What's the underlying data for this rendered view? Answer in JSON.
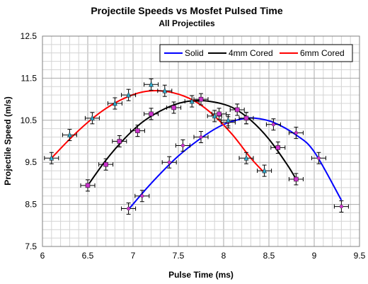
{
  "chart_data": {
    "type": "line",
    "title": "Projectile Speeds vs Mosfet Pulsed Time",
    "subtitle": "All Projectiles",
    "xlabel": "Pulse Time (ms)",
    "ylabel": "Projectile Speed (m/s)",
    "xlim": [
      6,
      9.5
    ],
    "ylim": [
      7.5,
      12.5
    ],
    "xticks": [
      "6",
      "6.5",
      "7",
      "7.5",
      "8",
      "8.5",
      "9",
      "9.5"
    ],
    "yticks": [
      "7.5",
      "8.5",
      "9.5",
      "10.5",
      "11.5",
      "12.5"
    ],
    "grid": true,
    "legend_position": "top-right",
    "series": [
      {
        "name": "Solid",
        "color": "#0000ff",
        "marker": "diamond",
        "marker_color": "#cc33cc",
        "points": [
          {
            "x": 6.95,
            "y": 8.4
          },
          {
            "x": 7.1,
            "y": 8.7
          },
          {
            "x": 7.4,
            "y": 9.5
          },
          {
            "x": 7.55,
            "y": 9.9
          },
          {
            "x": 7.75,
            "y": 10.1
          },
          {
            "x": 8.05,
            "y": 10.45
          },
          {
            "x": 8.25,
            "y": 10.55
          },
          {
            "x": 8.55,
            "y": 10.4
          },
          {
            "x": 8.8,
            "y": 10.2
          },
          {
            "x": 9.05,
            "y": 9.6
          },
          {
            "x": 9.3,
            "y": 8.45
          }
        ],
        "fit": [
          [
            6.95,
            8.38
          ],
          [
            7.2,
            9.0
          ],
          [
            7.5,
            9.65
          ],
          [
            7.8,
            10.15
          ],
          [
            8.0,
            10.4
          ],
          [
            8.2,
            10.53
          ],
          [
            8.35,
            10.55
          ],
          [
            8.55,
            10.45
          ],
          [
            8.8,
            10.15
          ],
          [
            9.0,
            9.75
          ],
          [
            9.3,
            8.6
          ]
        ]
      },
      {
        "name": "4mm Cored",
        "color": "#000000",
        "marker": "square",
        "marker_color": "#cc33cc",
        "points": [
          {
            "x": 6.5,
            "y": 8.95
          },
          {
            "x": 6.7,
            "y": 9.45
          },
          {
            "x": 6.85,
            "y": 10.0
          },
          {
            "x": 7.05,
            "y": 10.25
          },
          {
            "x": 7.2,
            "y": 10.65
          },
          {
            "x": 7.45,
            "y": 10.8
          },
          {
            "x": 7.75,
            "y": 11.0
          },
          {
            "x": 7.95,
            "y": 10.65
          },
          {
            "x": 8.15,
            "y": 10.75
          },
          {
            "x": 8.25,
            "y": 10.55
          },
          {
            "x": 8.6,
            "y": 9.85
          },
          {
            "x": 8.8,
            "y": 9.1
          }
        ],
        "fit": [
          [
            6.5,
            8.95
          ],
          [
            6.7,
            9.55
          ],
          [
            6.9,
            10.05
          ],
          [
            7.1,
            10.45
          ],
          [
            7.3,
            10.72
          ],
          [
            7.5,
            10.9
          ],
          [
            7.7,
            10.97
          ],
          [
            7.9,
            10.93
          ],
          [
            8.1,
            10.8
          ],
          [
            8.3,
            10.5
          ],
          [
            8.5,
            10.05
          ],
          [
            8.7,
            9.45
          ],
          [
            8.8,
            9.1
          ]
        ]
      },
      {
        "name": "6mm Cored",
        "color": "#ff0000",
        "marker": "triangle",
        "marker_color": "#33aacc",
        "points": [
          {
            "x": 6.1,
            "y": 9.6
          },
          {
            "x": 6.3,
            "y": 10.15
          },
          {
            "x": 6.55,
            "y": 10.55
          },
          {
            "x": 6.8,
            "y": 10.9
          },
          {
            "x": 6.95,
            "y": 11.1
          },
          {
            "x": 7.2,
            "y": 11.35
          },
          {
            "x": 7.35,
            "y": 11.2
          },
          {
            "x": 7.65,
            "y": 10.95
          },
          {
            "x": 7.9,
            "y": 10.6
          },
          {
            "x": 8.05,
            "y": 10.5
          },
          {
            "x": 8.25,
            "y": 9.6
          },
          {
            "x": 8.45,
            "y": 9.3
          }
        ],
        "fit": [
          [
            6.1,
            9.6
          ],
          [
            6.3,
            10.05
          ],
          [
            6.5,
            10.45
          ],
          [
            6.7,
            10.78
          ],
          [
            6.9,
            11.02
          ],
          [
            7.1,
            11.17
          ],
          [
            7.3,
            11.2
          ],
          [
            7.5,
            11.12
          ],
          [
            7.7,
            10.93
          ],
          [
            7.9,
            10.6
          ],
          [
            8.1,
            10.15
          ],
          [
            8.3,
            9.6
          ],
          [
            8.45,
            9.25
          ]
        ]
      }
    ]
  }
}
